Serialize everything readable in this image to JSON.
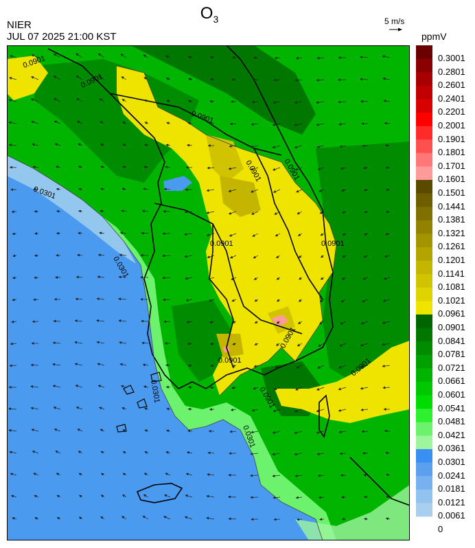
{
  "header": {
    "title_main": "O",
    "title_sub": "3",
    "organization": "NIER",
    "datetime": "JUL 07 2025 21:00 KST",
    "vector_scale": "5 m/s",
    "unit": "ppmV"
  },
  "map": {
    "contour_labels": [
      "0.0301",
      "0.0901"
    ]
  },
  "colorbar": {
    "levels": [
      {
        "label": "0.3001",
        "color": "#6b0000"
      },
      {
        "label": "0.2801",
        "color": "#8b0000"
      },
      {
        "label": "0.2601",
        "color": "#a80000"
      },
      {
        "label": "0.2401",
        "color": "#c00000"
      },
      {
        "label": "0.2201",
        "color": "#d80000"
      },
      {
        "label": "0.2001",
        "color": "#ff0000"
      },
      {
        "label": "0.1901",
        "color": "#ff2a2a"
      },
      {
        "label": "0.1801",
        "color": "#ff5050"
      },
      {
        "label": "0.1701",
        "color": "#ff7878"
      },
      {
        "label": "0.1601",
        "color": "#ff9a9a"
      },
      {
        "label": "0.1501",
        "color": "#5a4a00"
      },
      {
        "label": "0.1441",
        "color": "#6e5e00"
      },
      {
        "label": "0.1381",
        "color": "#807000"
      },
      {
        "label": "0.1321",
        "color": "#928200"
      },
      {
        "label": "0.1261",
        "color": "#a49400"
      },
      {
        "label": "0.1201",
        "color": "#b4a400"
      },
      {
        "label": "0.1141",
        "color": "#c4b600"
      },
      {
        "label": "0.1081",
        "color": "#d0c400"
      },
      {
        "label": "0.1021",
        "color": "#e0d400"
      },
      {
        "label": "0.0961",
        "color": "#eee400"
      },
      {
        "label": "0.0901",
        "color": "#006400"
      },
      {
        "label": "0.0841",
        "color": "#007800"
      },
      {
        "label": "0.0781",
        "color": "#008c00"
      },
      {
        "label": "0.0721",
        "color": "#00a000"
      },
      {
        "label": "0.0661",
        "color": "#00b400"
      },
      {
        "label": "0.0601",
        "color": "#00c800"
      },
      {
        "label": "0.0541",
        "color": "#00dc00"
      },
      {
        "label": "0.0481",
        "color": "#2ef02e"
      },
      {
        "label": "0.0421",
        "color": "#6cf26c"
      },
      {
        "label": "0.0361",
        "color": "#9ef59e"
      },
      {
        "label": "0.0301",
        "color": "#3a8ff2"
      },
      {
        "label": "0.0241",
        "color": "#5ba0ee"
      },
      {
        "label": "0.0181",
        "color": "#78b2ee"
      },
      {
        "label": "0.0121",
        "color": "#92c2ee"
      },
      {
        "label": "0.0061",
        "color": "#a8cfee"
      },
      {
        "label": "0",
        "color": ""
      }
    ]
  }
}
